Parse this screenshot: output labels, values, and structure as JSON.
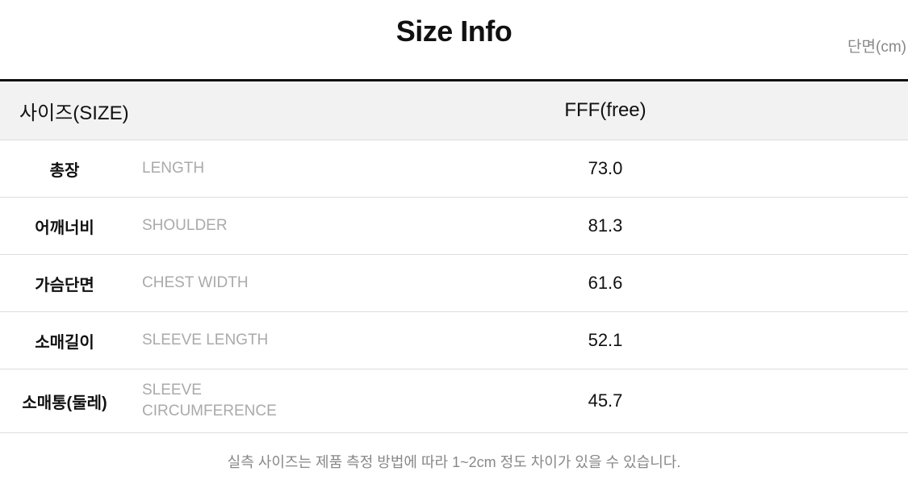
{
  "title": "Size Info",
  "unit": "단면(cm)",
  "header": {
    "label": "사이즈(SIZE)",
    "size": "FFF(free)"
  },
  "rows": [
    {
      "ko": "총장",
      "en": "LENGTH",
      "value": "73.0"
    },
    {
      "ko": "어깨너비",
      "en": "SHOULDER",
      "value": "81.3"
    },
    {
      "ko": "가슴단면",
      "en": "CHEST WIDTH",
      "value": "61.6"
    },
    {
      "ko": "소매길이",
      "en": "SLEEVE LENGTH",
      "value": "52.1"
    },
    {
      "ko": "소매통(둘레)",
      "en": "SLEEVE CIRCUMFERENCE",
      "value": "45.7"
    }
  ],
  "note": "실측 사이즈는 제품 측정 방법에 따라 1~2cm 정도 차이가 있을 수 있습니다."
}
